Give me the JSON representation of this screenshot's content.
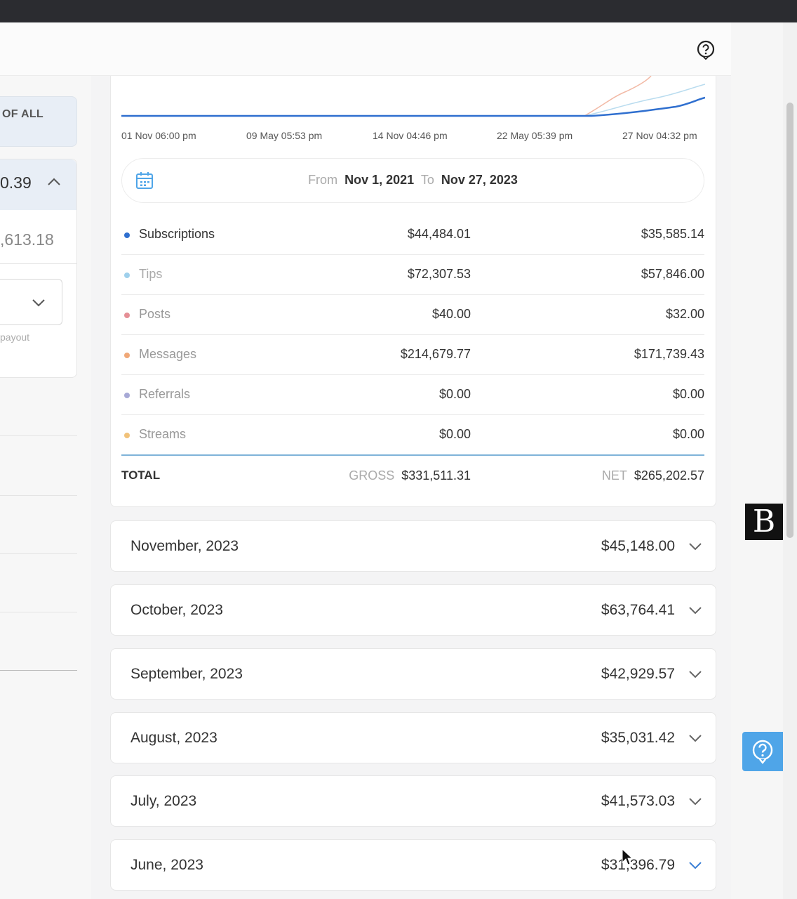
{
  "left_panel": {
    "tab_label": "OF ALL",
    "amount_current": "0.39",
    "amount_previous": ",613.18",
    "payout_note": "payout"
  },
  "chart": {
    "x_ticks": [
      "01 Nov 06:00 pm",
      "09 May 05:53 pm",
      "14 Nov 04:46 pm",
      "22 May 05:39 pm",
      "27 Nov 04:32 pm"
    ]
  },
  "date_range": {
    "from_label": "From",
    "from_value": "Nov 1, 2021",
    "to_label": "To",
    "to_value": "Nov 27, 2023"
  },
  "earnings": [
    {
      "label": "Subscriptions",
      "gross": "$44,484.01",
      "net": "$35,585.14",
      "color": "#2f6fcf"
    },
    {
      "label": "Tips",
      "gross": "$72,307.53",
      "net": "$57,846.00",
      "color": "#9fd0ec"
    },
    {
      "label": "Posts",
      "gross": "$40.00",
      "net": "$32.00",
      "color": "#e58f96"
    },
    {
      "label": "Messages",
      "gross": "$214,679.77",
      "net": "$171,739.43",
      "color": "#f0a878"
    },
    {
      "label": "Referrals",
      "gross": "$0.00",
      "net": "$0.00",
      "color": "#a7a9d6"
    },
    {
      "label": "Streams",
      "gross": "$0.00",
      "net": "$0.00",
      "color": "#f1c27a"
    }
  ],
  "total": {
    "label": "TOTAL",
    "gross_label": "GROSS",
    "gross": "$331,511.31",
    "net_label": "NET",
    "net": "$265,202.57"
  },
  "months": [
    {
      "name": "November, 2023",
      "amount": "$45,148.00"
    },
    {
      "name": "October, 2023",
      "amount": "$63,764.41"
    },
    {
      "name": "September, 2023",
      "amount": "$42,929.57"
    },
    {
      "name": "August, 2023",
      "amount": "$35,031.42"
    },
    {
      "name": "July, 2023",
      "amount": "$41,573.03"
    },
    {
      "name": "June, 2023",
      "amount": "$31,396.79"
    }
  ],
  "widgets": {
    "brand_letter": "B"
  }
}
